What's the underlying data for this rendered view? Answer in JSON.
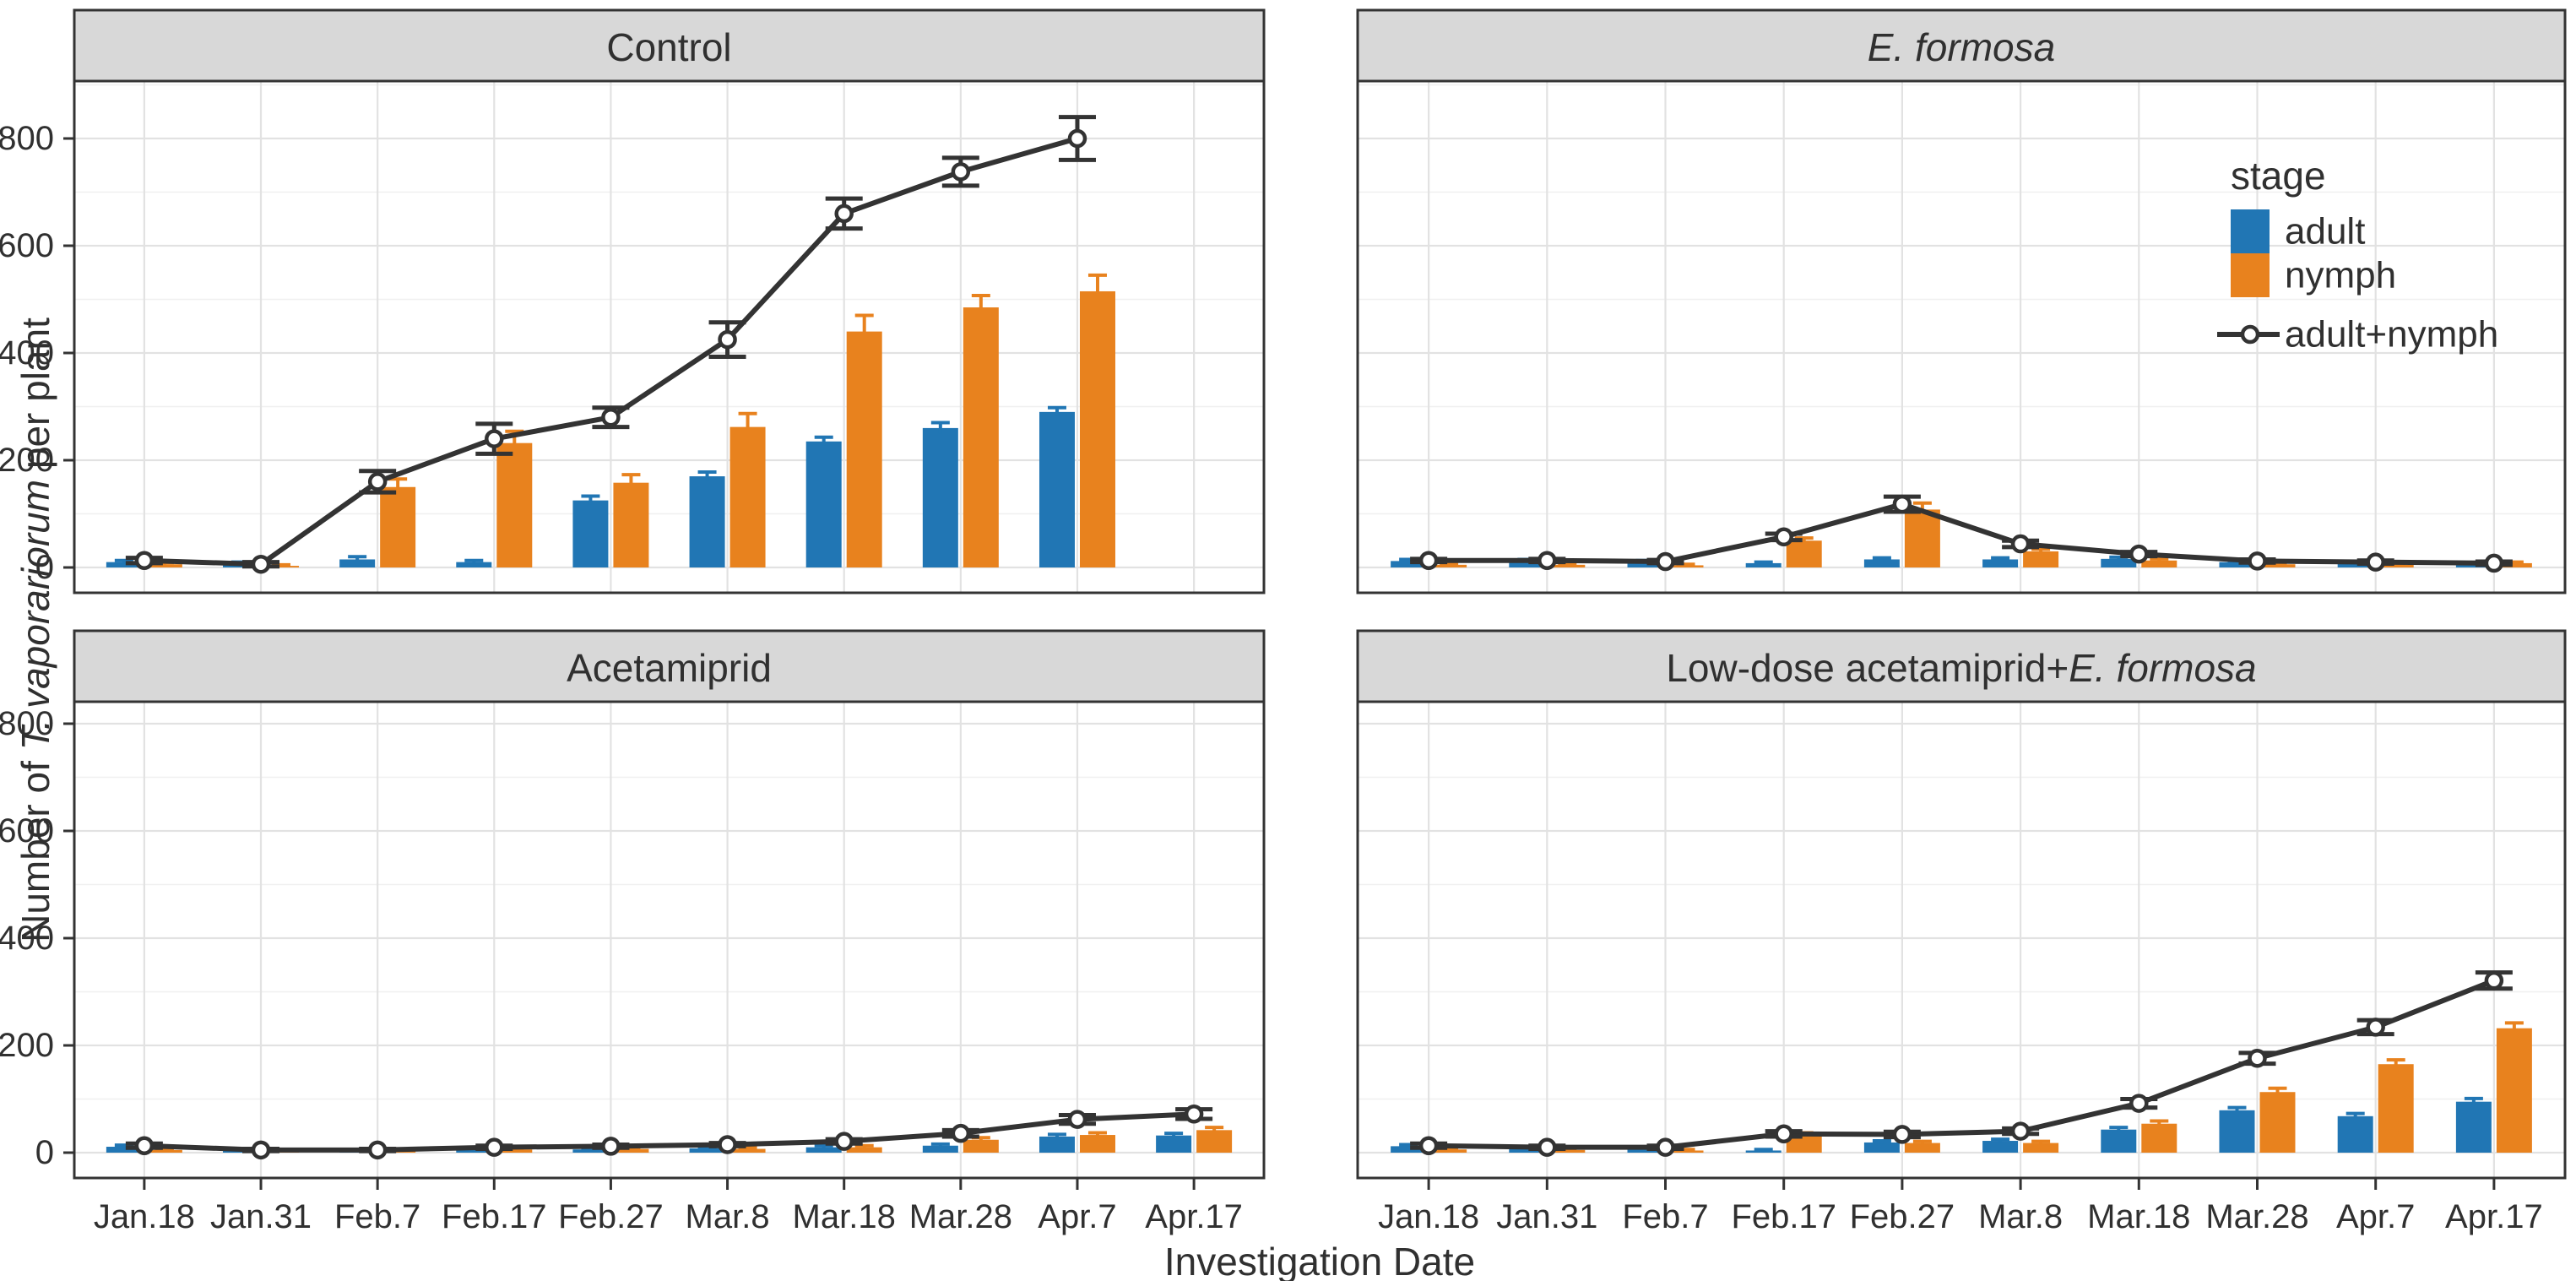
{
  "chart_data": {
    "type": "bar",
    "subtype": "faceted grouped bars with overlaid line and error bars",
    "xlabel": "Investigation Date",
    "ylabel_segments": [
      {
        "text": "Number of ",
        "italic": false
      },
      {
        "text": "T. vaporariorum",
        "italic": true
      },
      {
        "text": " per plant",
        "italic": false
      }
    ],
    "categories": [
      "Jan.18",
      "Jan.31",
      "Feb.7",
      "Feb.17",
      "Feb.27",
      "Mar.8",
      "Mar.18",
      "Mar.28",
      "Apr.7",
      "Apr.17"
    ],
    "yticks": [
      0,
      200,
      400,
      600,
      800
    ],
    "ytick_labels": [
      "0",
      "200",
      "400",
      "600",
      "800"
    ],
    "ylim": [
      0,
      910
    ],
    "grid": {
      "major": true,
      "minor_horizontal": true
    },
    "legend": {
      "title": "stage",
      "position": "inside top-right facet",
      "items": [
        {
          "label": "adult",
          "symbol": "square",
          "color": "#2176B4"
        },
        {
          "label": "nymph",
          "symbol": "square",
          "color": "#E8821E"
        },
        {
          "label": "adult+nymph",
          "symbol": "line-open-circle",
          "color": "#333333"
        }
      ]
    },
    "colors": {
      "adult": "#2176B4",
      "nymph": "#E8821E",
      "line": "#333333",
      "strip_fill": "#D8D8D8",
      "panel_border": "#333333",
      "grid_major": "#E2E2E2",
      "grid_minor": "#F0F0F0"
    },
    "panels": [
      {
        "id": "control",
        "title_segments": [
          {
            "text": "Control",
            "italic": false
          }
        ],
        "series": {
          "adult": {
            "values": [
              10,
              8,
              15,
              10,
              125,
              170,
              235,
              260,
              290,
              null
            ],
            "errors": [
              3,
              2,
              5,
              3,
              8,
              8,
              8,
              10,
              8,
              null
            ]
          },
          "nymph": {
            "values": [
              6,
              3,
              150,
              232,
              158,
              262,
              440,
              485,
              515,
              null
            ],
            "errors": [
              3,
              2,
              15,
              22,
              15,
              25,
              30,
              22,
              30,
              null
            ]
          },
          "total": {
            "values": [
              13,
              6,
              160,
              240,
              280,
              425,
              660,
              738,
              800,
              null
            ],
            "errors": [
              5,
              4,
              20,
              28,
              18,
              32,
              28,
              26,
              40,
              null
            ]
          }
        }
      },
      {
        "id": "e-formosa",
        "title_segments": [
          {
            "text": "E. formosa",
            "italic": true
          }
        ],
        "series": {
          "adult": {
            "values": [
              12,
              12,
              10,
              8,
              15,
              15,
              16,
              10,
              8,
              5
            ],
            "errors": [
              3,
              3,
              3,
              2,
              3,
              3,
              3,
              2,
              2,
              2
            ]
          },
          "nymph": {
            "values": [
              5,
              5,
              4,
              50,
              108,
              30,
              13,
              6,
              5,
              8
            ],
            "errors": [
              2,
              2,
              2,
              5,
              12,
              4,
              3,
              2,
              2,
              2
            ]
          },
          "total": {
            "values": [
              13,
              13,
              11,
              57,
              118,
              44,
              25,
              12,
              10,
              8
            ],
            "errors": [
              3,
              3,
              3,
              6,
              14,
              6,
              4,
              3,
              3,
              3
            ]
          }
        }
      },
      {
        "id": "acetamiprid",
        "title_segments": [
          {
            "text": "Acetamiprid",
            "italic": false
          }
        ],
        "series": {
          "adult": {
            "values": [
              11,
              5,
              4,
              5,
              6,
              8,
              10,
              13,
              30,
              32
            ],
            "errors": [
              3,
              2,
              2,
              2,
              2,
              2,
              3,
              3,
              4,
              4
            ]
          },
          "nymph": {
            "values": [
              5,
              4,
              4,
              6,
              7,
              7,
              10,
              24,
              33,
              42
            ],
            "errors": [
              2,
              2,
              2,
              2,
              2,
              2,
              3,
              4,
              4,
              5
            ]
          },
          "total": {
            "values": [
              13,
              5,
              5,
              10,
              12,
              15,
              21,
              36,
              62,
              72
            ],
            "errors": [
              4,
              2,
              2,
              3,
              3,
              3,
              4,
              6,
              8,
              9
            ]
          }
        }
      },
      {
        "id": "low-dose",
        "title_segments": [
          {
            "text": "Low-dose acetamiprid+",
            "italic": false
          },
          {
            "text": "E. formosa",
            "italic": true
          }
        ],
        "series": {
          "adult": {
            "values": [
              12,
              8,
              8,
              4,
              19,
              22,
              43,
              79,
              68,
              95
            ],
            "errors": [
              3,
              2,
              2,
              2,
              3,
              3,
              4,
              5,
              5,
              6
            ]
          },
          "nymph": {
            "values": [
              6,
              5,
              4,
              33,
              18,
              18,
              54,
              113,
              165,
              232
            ],
            "errors": [
              2,
              2,
              2,
              4,
              3,
              3,
              5,
              7,
              8,
              10
            ]
          },
          "total": {
            "values": [
              13,
              10,
              10,
              35,
              34,
              40,
              92,
              176,
              234,
              321
            ],
            "errors": [
              4,
              3,
              3,
              5,
              5,
              5,
              8,
              10,
              13,
              15
            ]
          }
        }
      }
    ]
  }
}
